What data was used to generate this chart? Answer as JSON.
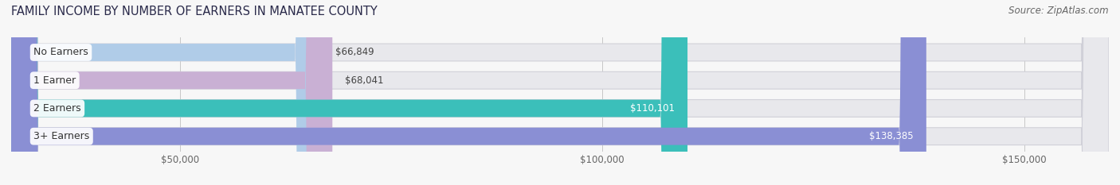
{
  "title": "FAMILY INCOME BY NUMBER OF EARNERS IN MANATEE COUNTY",
  "source": "Source: ZipAtlas.com",
  "categories": [
    "No Earners",
    "1 Earner",
    "2 Earners",
    "3+ Earners"
  ],
  "values": [
    66849,
    68041,
    110101,
    138385
  ],
  "bar_colors": [
    "#b0cce8",
    "#c9b0d4",
    "#3bbfba",
    "#8a8fd4"
  ],
  "label_colors": [
    "#444444",
    "#444444",
    "#ffffff",
    "#ffffff"
  ],
  "value_labels": [
    "$66,849",
    "$68,041",
    "$110,101",
    "$138,385"
  ],
  "bar_bg_color": "#e8e8ec",
  "background_color": "#f7f7f7",
  "xmin": 30000,
  "xmax": 160000,
  "xticks": [
    50000,
    100000,
    150000
  ],
  "xtick_labels": [
    "$50,000",
    "$100,000",
    "$150,000"
  ],
  "title_fontsize": 10.5,
  "source_fontsize": 8.5,
  "bar_label_fontsize": 9,
  "value_fontsize": 8.5,
  "bar_height": 0.62
}
